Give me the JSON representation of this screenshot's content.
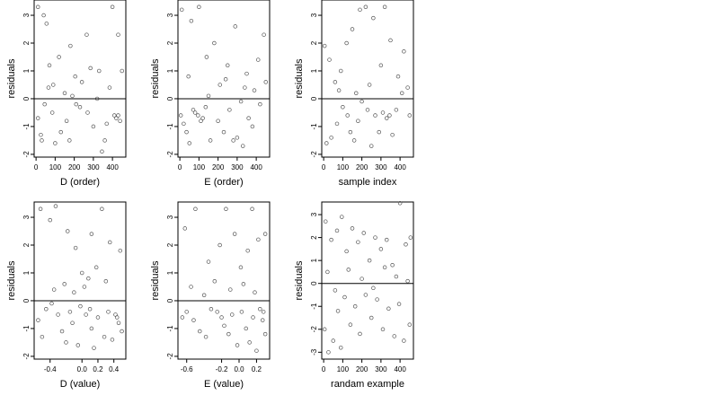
{
  "chart_data": [
    {
      "type": "scatter",
      "xlabel": "D (order)",
      "ylabel": "residuals",
      "xlim": [
        -10,
        470
      ],
      "ylim": [
        -2.1,
        3.55
      ],
      "xticks": [
        0,
        100,
        200,
        300,
        400
      ],
      "xtick_labels": [
        "0",
        "100",
        "200",
        "300",
        "400"
      ],
      "yticks": [
        -2,
        -1,
        0,
        1,
        2,
        3
      ],
      "ytick_labels": [
        "-2",
        "-1",
        "0",
        "1",
        "2",
        "3"
      ],
      "hline": 0,
      "points": [
        [
          10,
          3.3
        ],
        [
          40,
          3.0
        ],
        [
          55,
          2.7
        ],
        [
          70,
          1.2
        ],
        [
          90,
          0.5
        ],
        [
          120,
          1.5
        ],
        [
          150,
          0.2
        ],
        [
          180,
          1.9
        ],
        [
          205,
          0.8
        ],
        [
          230,
          -0.3
        ],
        [
          265,
          2.3
        ],
        [
          300,
          -1.0
        ],
        [
          330,
          1.0
        ],
        [
          360,
          -1.5
        ],
        [
          400,
          3.3
        ],
        [
          430,
          2.3
        ],
        [
          10,
          -0.7
        ],
        [
          25,
          -1.3
        ],
        [
          30,
          -1.5
        ],
        [
          45,
          -0.2
        ],
        [
          65,
          0.4
        ],
        [
          85,
          -0.5
        ],
        [
          100,
          -1.6
        ],
        [
          130,
          -1.2
        ],
        [
          160,
          -0.8
        ],
        [
          175,
          -1.5
        ],
        [
          190,
          0.1
        ],
        [
          210,
          -0.2
        ],
        [
          240,
          0.6
        ],
        [
          270,
          -0.5
        ],
        [
          285,
          1.1
        ],
        [
          320,
          0.0
        ],
        [
          345,
          -1.9
        ],
        [
          370,
          -0.9
        ],
        [
          385,
          0.4
        ],
        [
          410,
          -0.6
        ],
        [
          420,
          -0.7
        ],
        [
          430,
          -0.6
        ],
        [
          440,
          -0.8
        ],
        [
          450,
          1.0
        ]
      ]
    },
    {
      "type": "scatter",
      "xlabel": "E (order)",
      "ylabel": "residuals",
      "xlim": [
        -10,
        470
      ],
      "ylim": [
        -2.1,
        3.55
      ],
      "xticks": [
        0,
        100,
        200,
        300,
        400
      ],
      "xtick_labels": [
        "0",
        "100",
        "200",
        "300",
        "400"
      ],
      "yticks": [
        -2,
        -1,
        0,
        1,
        2,
        3
      ],
      "ytick_labels": [
        "-2",
        "-1",
        "0",
        "1",
        "2",
        "3"
      ],
      "hline": 0,
      "points": [
        [
          10,
          3.2
        ],
        [
          60,
          2.8
        ],
        [
          100,
          3.3
        ],
        [
          140,
          1.5
        ],
        [
          180,
          2.0
        ],
        [
          210,
          0.5
        ],
        [
          250,
          1.2
        ],
        [
          290,
          2.6
        ],
        [
          320,
          -0.1
        ],
        [
          350,
          0.9
        ],
        [
          380,
          -1.0
        ],
        [
          410,
          1.4
        ],
        [
          440,
          2.3
        ],
        [
          5,
          -0.6
        ],
        [
          20,
          -0.9
        ],
        [
          35,
          -1.2
        ],
        [
          50,
          -1.6
        ],
        [
          70,
          -0.4
        ],
        [
          80,
          -0.5
        ],
        [
          95,
          -0.6
        ],
        [
          110,
          -0.8
        ],
        [
          120,
          -0.7
        ],
        [
          135,
          -0.3
        ],
        [
          160,
          -1.5
        ],
        [
          200,
          -0.8
        ],
        [
          230,
          -1.2
        ],
        [
          260,
          -0.4
        ],
        [
          280,
          -1.5
        ],
        [
          300,
          -1.4
        ],
        [
          330,
          -1.7
        ],
        [
          360,
          -0.7
        ],
        [
          390,
          0.3
        ],
        [
          420,
          -0.2
        ],
        [
          450,
          0.6
        ],
        [
          45,
          0.8
        ],
        [
          150,
          0.1
        ],
        [
          240,
          0.7
        ],
        [
          340,
          0.4
        ]
      ]
    },
    {
      "type": "scatter",
      "xlabel": "sample index",
      "ylabel": "residuals",
      "xlim": [
        -10,
        470
      ],
      "ylim": [
        -2.1,
        3.55
      ],
      "xticks": [
        0,
        100,
        200,
        300,
        400
      ],
      "xtick_labels": [
        "0",
        "100",
        "200",
        "300",
        "400"
      ],
      "yticks": [
        -2,
        -1,
        0,
        1,
        2,
        3
      ],
      "ytick_labels": [
        "-2",
        "-1",
        "0",
        "1",
        "2",
        "3"
      ],
      "hline": 0,
      "points": [
        [
          5,
          1.9
        ],
        [
          30,
          1.4
        ],
        [
          60,
          0.6
        ],
        [
          90,
          1.0
        ],
        [
          120,
          2.0
        ],
        [
          150,
          2.5
        ],
        [
          190,
          3.2
        ],
        [
          220,
          3.3
        ],
        [
          260,
          2.9
        ],
        [
          300,
          1.2
        ],
        [
          320,
          3.3
        ],
        [
          350,
          2.1
        ],
        [
          390,
          0.8
        ],
        [
          420,
          1.7
        ],
        [
          440,
          0.4
        ],
        [
          15,
          -1.6
        ],
        [
          40,
          -1.4
        ],
        [
          70,
          -0.9
        ],
        [
          100,
          -0.3
        ],
        [
          125,
          -0.6
        ],
        [
          140,
          -1.2
        ],
        [
          160,
          -1.5
        ],
        [
          180,
          -0.8
        ],
        [
          200,
          -0.1
        ],
        [
          230,
          -0.4
        ],
        [
          250,
          -1.7
        ],
        [
          270,
          -0.6
        ],
        [
          290,
          -1.2
        ],
        [
          310,
          -0.5
        ],
        [
          330,
          -0.7
        ],
        [
          345,
          -0.6
        ],
        [
          360,
          -1.3
        ],
        [
          380,
          -0.4
        ],
        [
          410,
          0.2
        ],
        [
          450,
          -0.6
        ],
        [
          80,
          0.3
        ],
        [
          170,
          0.2
        ],
        [
          240,
          0.5
        ]
      ]
    },
    {
      "type": "scatter",
      "xlabel": "D (value)",
      "ylabel": "residuals",
      "xlim": [
        -0.6,
        0.55
      ],
      "ylim": [
        -2.1,
        3.55
      ],
      "xticks": [
        -0.4,
        0.0,
        0.2,
        0.4
      ],
      "xtick_labels": [
        "-0.4",
        "0.0",
        "0.2",
        "0.4"
      ],
      "yticks": [
        -2,
        -1,
        0,
        1,
        2,
        3
      ],
      "ytick_labels": [
        "-2",
        "-1",
        "0",
        "1",
        "2",
        "3"
      ],
      "hline": 0,
      "points": [
        [
          -0.52,
          3.3
        ],
        [
          -0.4,
          2.9
        ],
        [
          -0.33,
          3.4
        ],
        [
          -0.18,
          2.5
        ],
        [
          -0.08,
          1.9
        ],
        [
          0.0,
          1.0
        ],
        [
          0.08,
          0.8
        ],
        [
          0.12,
          2.4
        ],
        [
          0.18,
          1.2
        ],
        [
          0.25,
          3.3
        ],
        [
          0.35,
          2.1
        ],
        [
          0.48,
          1.8
        ],
        [
          -0.55,
          -0.7
        ],
        [
          -0.5,
          -1.3
        ],
        [
          -0.45,
          -0.3
        ],
        [
          -0.38,
          -0.1
        ],
        [
          -0.3,
          -0.5
        ],
        [
          -0.25,
          -1.1
        ],
        [
          -0.2,
          -1.5
        ],
        [
          -0.15,
          -0.4
        ],
        [
          -0.12,
          -0.8
        ],
        [
          -0.05,
          -1.6
        ],
        [
          -0.02,
          -0.2
        ],
        [
          0.05,
          -0.5
        ],
        [
          0.1,
          -0.3
        ],
        [
          0.12,
          -1.0
        ],
        [
          0.15,
          -1.7
        ],
        [
          0.2,
          -0.6
        ],
        [
          0.28,
          -1.3
        ],
        [
          0.33,
          -0.4
        ],
        [
          0.38,
          -1.4
        ],
        [
          0.42,
          -0.5
        ],
        [
          0.44,
          -0.6
        ],
        [
          0.46,
          -0.8
        ],
        [
          0.5,
          -1.1
        ],
        [
          -0.35,
          0.4
        ],
        [
          -0.22,
          0.6
        ],
        [
          -0.1,
          0.3
        ],
        [
          0.03,
          0.5
        ],
        [
          0.3,
          0.7
        ]
      ]
    },
    {
      "type": "scatter",
      "xlabel": "E (value)",
      "ylabel": "residuals",
      "xlim": [
        -0.7,
        0.35
      ],
      "ylim": [
        -2.1,
        3.55
      ],
      "xticks": [
        -0.6,
        -0.2,
        0.0,
        0.2
      ],
      "xtick_labels": [
        "-0.6",
        "-0.2",
        "0.0",
        "0.2"
      ],
      "yticks": [
        -2,
        -1,
        0,
        1,
        2,
        3
      ],
      "ytick_labels": [
        "-2",
        "-1",
        "0",
        "1",
        "2",
        "3"
      ],
      "hline": 0,
      "points": [
        [
          -0.62,
          2.6
        ],
        [
          -0.5,
          3.3
        ],
        [
          -0.35,
          1.4
        ],
        [
          -0.22,
          2.0
        ],
        [
          -0.15,
          3.3
        ],
        [
          -0.05,
          2.4
        ],
        [
          0.02,
          1.2
        ],
        [
          0.1,
          1.8
        ],
        [
          0.15,
          3.3
        ],
        [
          0.22,
          2.2
        ],
        [
          0.3,
          2.4
        ],
        [
          -0.65,
          -0.6
        ],
        [
          -0.6,
          -0.4
        ],
        [
          -0.52,
          -0.7
        ],
        [
          -0.45,
          -1.1
        ],
        [
          -0.38,
          -1.3
        ],
        [
          -0.32,
          -0.3
        ],
        [
          -0.25,
          -0.4
        ],
        [
          -0.2,
          -0.6
        ],
        [
          -0.17,
          -0.9
        ],
        [
          -0.12,
          -1.2
        ],
        [
          -0.08,
          -0.5
        ],
        [
          -0.02,
          -1.6
        ],
        [
          0.03,
          -0.4
        ],
        [
          0.08,
          -1.0
        ],
        [
          0.12,
          -1.5
        ],
        [
          0.16,
          -0.6
        ],
        [
          0.2,
          -1.8
        ],
        [
          0.24,
          -0.3
        ],
        [
          0.27,
          -0.7
        ],
        [
          0.28,
          -0.4
        ],
        [
          0.3,
          -1.2
        ],
        [
          -0.55,
          0.5
        ],
        [
          -0.4,
          0.2
        ],
        [
          -0.28,
          0.7
        ],
        [
          -0.1,
          0.4
        ],
        [
          0.05,
          0.6
        ],
        [
          0.18,
          0.3
        ]
      ]
    },
    {
      "type": "scatter",
      "xlabel": "randam example",
      "ylabel": "residuals",
      "xlim": [
        -10,
        470
      ],
      "ylim": [
        -3.3,
        3.55
      ],
      "xticks": [
        0,
        100,
        200,
        300,
        400
      ],
      "xtick_labels": [
        "0",
        "100",
        "200",
        "300",
        "400"
      ],
      "yticks": [
        -3,
        -2,
        -1,
        0,
        1,
        2,
        3
      ],
      "ytick_labels": [
        "-3",
        "-2",
        "-1",
        "0",
        "1",
        "2",
        "3"
      ],
      "hline": 0,
      "points": [
        [
          10,
          2.7
        ],
        [
          40,
          1.9
        ],
        [
          70,
          2.3
        ],
        [
          95,
          2.9
        ],
        [
          120,
          1.4
        ],
        [
          150,
          2.4
        ],
        [
          180,
          1.8
        ],
        [
          210,
          2.2
        ],
        [
          240,
          1.0
        ],
        [
          270,
          2.0
        ],
        [
          300,
          1.5
        ],
        [
          330,
          1.9
        ],
        [
          360,
          0.8
        ],
        [
          400,
          3.5
        ],
        [
          430,
          1.7
        ],
        [
          455,
          2.0
        ],
        [
          5,
          -2.0
        ],
        [
          25,
          -3.0
        ],
        [
          50,
          -2.5
        ],
        [
          75,
          -1.2
        ],
        [
          90,
          -2.8
        ],
        [
          110,
          -0.6
        ],
        [
          140,
          -1.8
        ],
        [
          165,
          -1.0
        ],
        [
          190,
          -2.2
        ],
        [
          220,
          -0.5
        ],
        [
          250,
          -1.5
        ],
        [
          280,
          -0.7
        ],
        [
          310,
          -2.0
        ],
        [
          340,
          -1.1
        ],
        [
          370,
          -2.3
        ],
        [
          395,
          -0.9
        ],
        [
          420,
          -2.5
        ],
        [
          450,
          -1.8
        ],
        [
          20,
          0.5
        ],
        [
          60,
          -0.3
        ],
        [
          130,
          0.6
        ],
        [
          200,
          0.2
        ],
        [
          260,
          -0.2
        ],
        [
          320,
          0.7
        ],
        [
          380,
          0.3
        ],
        [
          440,
          0.1
        ]
      ]
    }
  ]
}
